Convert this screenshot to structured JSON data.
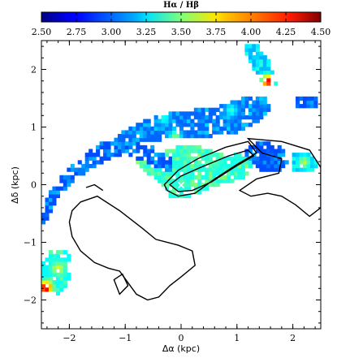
{
  "chart_data": {
    "type": "heatmap",
    "title": "",
    "colorbar": {
      "label": "Hα / Hβ",
      "ticks": [
        2.5,
        2.75,
        3.0,
        3.25,
        3.5,
        3.75,
        4.0,
        4.25,
        4.5
      ],
      "tick_labels": [
        "2.50",
        "2.75",
        "3.00",
        "3.25",
        "3.50",
        "3.75",
        "4.00",
        "4.25",
        "4.50"
      ],
      "range": [
        2.5,
        4.5
      ],
      "colormap": "jet",
      "placement": "top"
    },
    "xlabel": "Δα (kpc)",
    "ylabel": "Δδ (kpc)",
    "xlim": [
      -2.5,
      2.5
    ],
    "ylim": [
      -2.5,
      2.5
    ],
    "xticks": [
      -2,
      -1,
      0,
      1,
      2
    ],
    "xtick_labels": [
      "−2",
      "−1",
      "0",
      "1",
      "2"
    ],
    "yticks": [
      -2,
      -1,
      0,
      1,
      2
    ],
    "ytick_labels": [
      "−2",
      "−1",
      "0",
      "1",
      "2"
    ],
    "grid": false,
    "marker": {
      "symbol": "×",
      "x": 0.0,
      "y": 0.0,
      "color": "#ffffff"
    },
    "regions": [
      {
        "name": "main-arc-lower",
        "points": [
          [
            -2.45,
            -0.7
          ],
          [
            -2.25,
            -0.3
          ],
          [
            -1.9,
            0.1
          ],
          [
            -1.5,
            0.35
          ],
          [
            -1.2,
            0.5
          ],
          [
            -0.95,
            0.55
          ],
          [
            -0.8,
            0.45
          ],
          [
            -0.5,
            0.35
          ],
          [
            -0.3,
            0.25
          ],
          [
            -0.15,
            0.2
          ],
          [
            -0.15,
            0.45
          ],
          [
            -0.6,
            0.7
          ],
          [
            -1.0,
            0.75
          ],
          [
            -1.4,
            0.75
          ],
          [
            -1.75,
            0.5
          ],
          [
            -2.1,
            0.2
          ],
          [
            -2.4,
            -0.2
          ],
          [
            -2.5,
            -0.6
          ]
        ],
        "value": 2.9
      },
      {
        "name": "main-arc-upper",
        "points": [
          [
            -1.3,
            0.65
          ],
          [
            -1.0,
            0.95
          ],
          [
            -0.6,
            1.15
          ],
          [
            -0.2,
            1.25
          ],
          [
            0.2,
            1.3
          ],
          [
            0.6,
            1.35
          ],
          [
            0.95,
            1.45
          ],
          [
            1.2,
            1.55
          ],
          [
            1.5,
            1.55
          ],
          [
            1.6,
            1.3
          ],
          [
            1.3,
            1.05
          ],
          [
            1.0,
            0.9
          ],
          [
            0.6,
            0.85
          ],
          [
            0.2,
            0.8
          ],
          [
            -0.2,
            0.8
          ],
          [
            -0.6,
            0.75
          ],
          [
            -1.0,
            0.7
          ]
        ],
        "value": 2.95
      },
      {
        "name": "central-core",
        "points": [
          [
            -0.8,
            0.4
          ],
          [
            -0.4,
            0.55
          ],
          [
            0.0,
            0.7
          ],
          [
            0.4,
            0.65
          ],
          [
            0.8,
            0.5
          ],
          [
            1.1,
            0.55
          ],
          [
            1.3,
            0.35
          ],
          [
            1.1,
            0.1
          ],
          [
            0.7,
            0.0
          ],
          [
            0.4,
            -0.1
          ],
          [
            0.2,
            -0.2
          ],
          [
            -0.2,
            -0.2
          ],
          [
            -0.35,
            0.0
          ],
          [
            -0.6,
            0.2
          ]
        ],
        "value": 3.3
      },
      {
        "name": "east-tail",
        "points": [
          [
            1.1,
            0.7
          ],
          [
            1.5,
            0.75
          ],
          [
            1.8,
            0.65
          ],
          [
            1.9,
            0.4
          ],
          [
            1.7,
            0.2
          ],
          [
            1.4,
            0.25
          ],
          [
            1.2,
            0.45
          ]
        ],
        "value": 2.9
      },
      {
        "name": "south-west-knot",
        "points": [
          [
            -2.5,
            -1.85
          ],
          [
            -2.2,
            -1.9
          ],
          [
            -1.95,
            -1.65
          ],
          [
            -1.95,
            -1.3
          ],
          [
            -2.1,
            -1.1
          ],
          [
            -2.35,
            -1.15
          ],
          [
            -2.5,
            -1.4
          ]
        ],
        "value": 3.25
      },
      {
        "name": "north-east-streak",
        "points": [
          [
            1.15,
            2.45
          ],
          [
            1.35,
            2.45
          ],
          [
            1.6,
            2.1
          ],
          [
            1.7,
            1.75
          ],
          [
            1.5,
            1.7
          ],
          [
            1.3,
            2.0
          ],
          [
            1.15,
            2.25
          ]
        ],
        "value": 3.1
      },
      {
        "name": "far-east-clump",
        "points": [
          [
            1.95,
            0.55
          ],
          [
            2.3,
            0.55
          ],
          [
            2.45,
            0.35
          ],
          [
            2.3,
            0.2
          ],
          [
            2.0,
            0.25
          ]
        ],
        "value": 3.1
      },
      {
        "name": "small-east-patch",
        "points": [
          [
            2.05,
            1.55
          ],
          [
            2.45,
            1.55
          ],
          [
            2.45,
            1.35
          ],
          [
            2.05,
            1.35
          ]
        ],
        "value": 2.9
      }
    ],
    "hotspots": [
      {
        "x": 1.55,
        "y": 1.8,
        "value": 4.3
      },
      {
        "x": -2.42,
        "y": -1.78,
        "value": 4.4
      },
      {
        "x": -2.2,
        "y": -1.45,
        "value": 3.7
      },
      {
        "x": -0.1,
        "y": 0.85,
        "value": 3.5
      },
      {
        "x": 0.2,
        "y": 0.5,
        "value": 3.45
      },
      {
        "x": 0.6,
        "y": 0.45,
        "value": 3.4
      },
      {
        "x": 2.2,
        "y": 0.4,
        "value": 3.6
      },
      {
        "x": -0.3,
        "y": 1.15,
        "value": 3.3
      },
      {
        "x": 0.9,
        "y": 1.3,
        "value": 3.35
      },
      {
        "x": -2.0,
        "y": -0.3,
        "value": 3.2
      },
      {
        "x": -1.6,
        "y": 0.2,
        "value": 3.2
      }
    ],
    "contours": [
      {
        "name": "contour-lobe-south",
        "points": [
          [
            -1.8,
            -0.3
          ],
          [
            -1.5,
            -0.2
          ],
          [
            -1.1,
            -0.45
          ],
          [
            -0.7,
            -0.75
          ],
          [
            -0.45,
            -0.95
          ],
          [
            -0.05,
            -1.05
          ],
          [
            0.2,
            -1.15
          ],
          [
            0.25,
            -1.4
          ],
          [
            0.0,
            -1.6
          ],
          [
            -0.2,
            -1.75
          ],
          [
            -0.4,
            -1.95
          ],
          [
            -0.6,
            -2.0
          ],
          [
            -0.8,
            -1.9
          ],
          [
            -0.95,
            -1.7
          ],
          [
            -1.1,
            -1.5
          ],
          [
            -1.3,
            -1.45
          ],
          [
            -1.55,
            -1.35
          ],
          [
            -1.8,
            -1.15
          ],
          [
            -1.95,
            -0.9
          ],
          [
            -2.0,
            -0.65
          ],
          [
            -1.95,
            -0.45
          ]
        ]
      },
      {
        "name": "contour-lobe-south-hole",
        "points": [
          [
            -1.2,
            -1.65
          ],
          [
            -1.05,
            -1.55
          ],
          [
            -0.95,
            -1.75
          ],
          [
            -1.1,
            -1.9
          ]
        ]
      },
      {
        "name": "contour-lobe-east",
        "points": [
          [
            1.2,
            0.8
          ],
          [
            1.8,
            0.75
          ],
          [
            2.3,
            0.6
          ],
          [
            2.5,
            0.3
          ],
          [
            2.5,
            -0.4
          ],
          [
            2.3,
            -0.55
          ],
          [
            2.05,
            -0.35
          ],
          [
            1.8,
            -0.2
          ],
          [
            1.55,
            -0.15
          ],
          [
            1.25,
            -0.2
          ],
          [
            1.05,
            -0.1
          ],
          [
            1.35,
            0.1
          ],
          [
            1.75,
            0.2
          ],
          [
            1.8,
            0.45
          ],
          [
            1.45,
            0.55
          ]
        ]
      },
      {
        "name": "contour-nucleus-1",
        "points": [
          [
            -0.3,
            0.0
          ],
          [
            -0.05,
            0.25
          ],
          [
            0.3,
            0.45
          ],
          [
            0.8,
            0.65
          ],
          [
            1.2,
            0.75
          ],
          [
            1.35,
            0.55
          ],
          [
            1.0,
            0.35
          ],
          [
            0.6,
            0.1
          ],
          [
            0.25,
            -0.15
          ],
          [
            -0.05,
            -0.2
          ],
          [
            -0.25,
            -0.1
          ]
        ]
      },
      {
        "name": "contour-nucleus-2",
        "points": [
          [
            -0.2,
            0.0
          ],
          [
            0.0,
            0.15
          ],
          [
            0.35,
            0.3
          ],
          [
            0.85,
            0.5
          ],
          [
            1.2,
            0.6
          ],
          [
            1.3,
            0.5
          ],
          [
            0.95,
            0.3
          ],
          [
            0.55,
            0.05
          ],
          [
            0.2,
            -0.1
          ],
          [
            -0.05,
            -0.12
          ]
        ]
      },
      {
        "name": "contour-north-arc",
        "points": [
          [
            -1.7,
            -0.05
          ],
          [
            -1.55,
            0.0
          ],
          [
            -1.4,
            -0.1
          ]
        ]
      }
    ]
  }
}
